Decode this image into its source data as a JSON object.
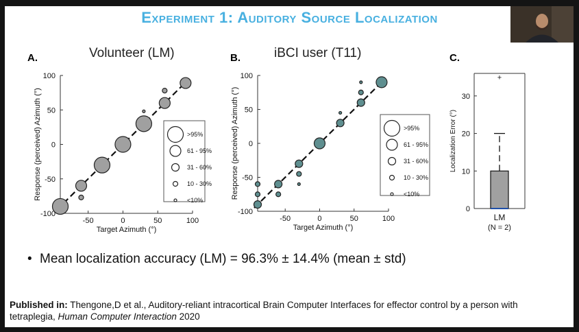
{
  "slide": {
    "title": "Experiment 1: Auditory Source Localization",
    "bullet": "Mean localization accuracy (LM) = 96.3% ± 14.4% (mean ± std)",
    "citation_label": "Published in:",
    "citation_text": " Thengone,D et al., Auditory-reliant intracortical Brain Computer Interfaces for effector control by a person with tetraplegia, ",
    "citation_journal": "Human Computer Interaction",
    "citation_year": " 2020"
  },
  "colors": {
    "title": "#48b0e0",
    "panelA_fill": "#a0a0a0",
    "panelB_fill": "#5f8f90",
    "box_fill": "#a0a0a0",
    "median": "#1f4fa8"
  },
  "chart_data": [
    {
      "type": "scatter",
      "panel_label": "A.",
      "title": "Volunteer (LM)",
      "xlabel": "Target Azimuth (°)",
      "ylabel": "Response (perceived) Azimuth (°)",
      "xlim": [
        -90,
        100
      ],
      "ylim": [
        -100,
        100
      ],
      "xticks": [
        -50,
        0,
        50,
        100
      ],
      "yticks": [
        -100,
        -50,
        0,
        50,
        100
      ],
      "legend_placement": "right",
      "legend": [
        ">95%",
        "61 - 95%",
        "31 - 60%",
        "10 - 30%",
        "<10%"
      ],
      "points": [
        {
          "x": -90,
          "y": -90,
          "size": 4
        },
        {
          "x": -60,
          "y": -60,
          "size": 3
        },
        {
          "x": -60,
          "y": -77,
          "size": 1
        },
        {
          "x": -30,
          "y": -30,
          "size": 4
        },
        {
          "x": 0,
          "y": 0,
          "size": 4
        },
        {
          "x": 30,
          "y": 30,
          "size": 4
        },
        {
          "x": 30,
          "y": 48,
          "size": 0
        },
        {
          "x": 60,
          "y": 60,
          "size": 3
        },
        {
          "x": 60,
          "y": 78,
          "size": 1
        },
        {
          "x": 90,
          "y": 89,
          "size": 3
        }
      ]
    },
    {
      "type": "scatter",
      "panel_label": "B.",
      "title": "iBCI user (T11)",
      "xlabel": "Target Azimuth (°)",
      "ylabel": "Response (perceived) Azimuth (°)",
      "xlim": [
        -90,
        100
      ],
      "ylim": [
        -100,
        100
      ],
      "xticks": [
        -50,
        0,
        50,
        100
      ],
      "yticks": [
        -100,
        -50,
        0,
        50,
        100
      ],
      "legend_placement": "right",
      "legend": [
        ">95%",
        "61 - 95%",
        "31 - 60%",
        "10 - 30%",
        "<10%"
      ],
      "points": [
        {
          "x": -90,
          "y": -90,
          "size": 2
        },
        {
          "x": -90,
          "y": -60,
          "size": 1
        },
        {
          "x": -90,
          "y": -75,
          "size": 1
        },
        {
          "x": -60,
          "y": -60,
          "size": 2
        },
        {
          "x": -60,
          "y": -75,
          "size": 1
        },
        {
          "x": -30,
          "y": -30,
          "size": 2
        },
        {
          "x": -30,
          "y": -45,
          "size": 1
        },
        {
          "x": -30,
          "y": -60,
          "size": 0
        },
        {
          "x": 0,
          "y": 0,
          "size": 3
        },
        {
          "x": 30,
          "y": 30,
          "size": 2
        },
        {
          "x": 30,
          "y": 45,
          "size": 0
        },
        {
          "x": 60,
          "y": 60,
          "size": 2
        },
        {
          "x": 60,
          "y": 75,
          "size": 1
        },
        {
          "x": 60,
          "y": 90,
          "size": 0
        },
        {
          "x": 90,
          "y": 90,
          "size": 3
        }
      ]
    },
    {
      "type": "box",
      "panel_label": "C.",
      "ylabel": "Localization Error (°)",
      "category": "LM",
      "category_note": "(N = 2)",
      "ylim": [
        0,
        36
      ],
      "yticks": [
        0,
        10,
        20,
        30
      ],
      "q1": 0,
      "median": 0,
      "q3": 10,
      "whisker_low": 0,
      "whisker_high": 20,
      "outliers": [
        35
      ]
    }
  ]
}
